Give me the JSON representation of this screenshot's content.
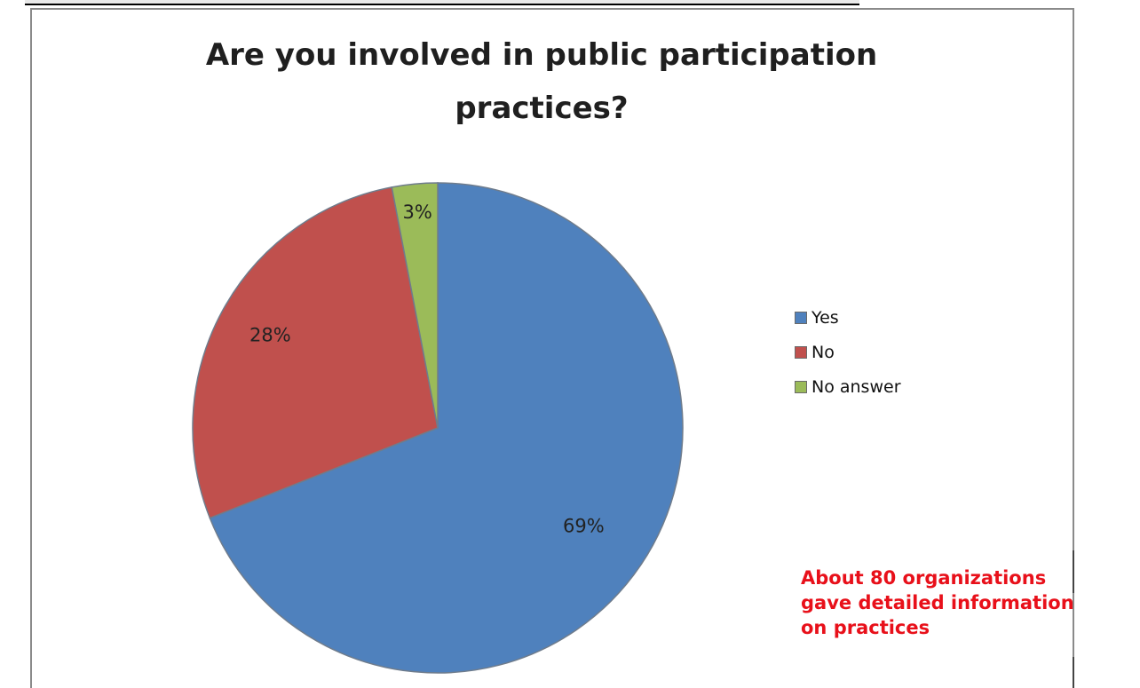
{
  "chart_data": {
    "type": "pie",
    "title": "Are you involved in public participation\npractices?",
    "categories": [
      "Yes",
      "No",
      "No answer"
    ],
    "values": [
      69,
      28,
      3
    ],
    "data_labels": [
      "69%",
      "28%",
      "3%"
    ],
    "colors": [
      "#4f81bd",
      "#c0504d",
      "#9bbb59"
    ],
    "legend_position": "right",
    "start_angle": "12 o'clock",
    "direction": "clockwise"
  },
  "annotation": {
    "text": "About 80 organizations\ngave detailed information\non practices",
    "color": "#e8101a"
  }
}
